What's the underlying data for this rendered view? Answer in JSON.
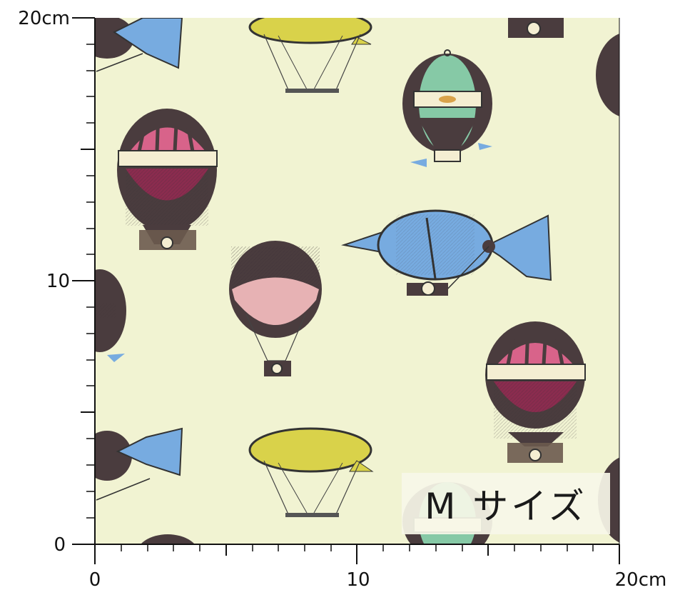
{
  "ruler": {
    "y_labels": [
      "20cm",
      "10",
      "0"
    ],
    "x_labels": [
      "0",
      "10",
      "20cm"
    ]
  },
  "badge": {
    "text": "M サイズ"
  },
  "colors": {
    "fabric_bg": "#f1f3d2",
    "balloon_dark": "#4a3c3e",
    "balloon_pink": "#d8638a",
    "balloon_maroon": "#8b2c4f",
    "balloon_light_pink": "#e7b2b4",
    "balloon_teal": "#86c9a6",
    "balloon_blue": "#77abe0",
    "balloon_yellow": "#d9d24a",
    "band_cream": "#f4eed2"
  },
  "icons": [
    "hot-air-balloon-icon",
    "airship-icon",
    "blimp-icon"
  ]
}
